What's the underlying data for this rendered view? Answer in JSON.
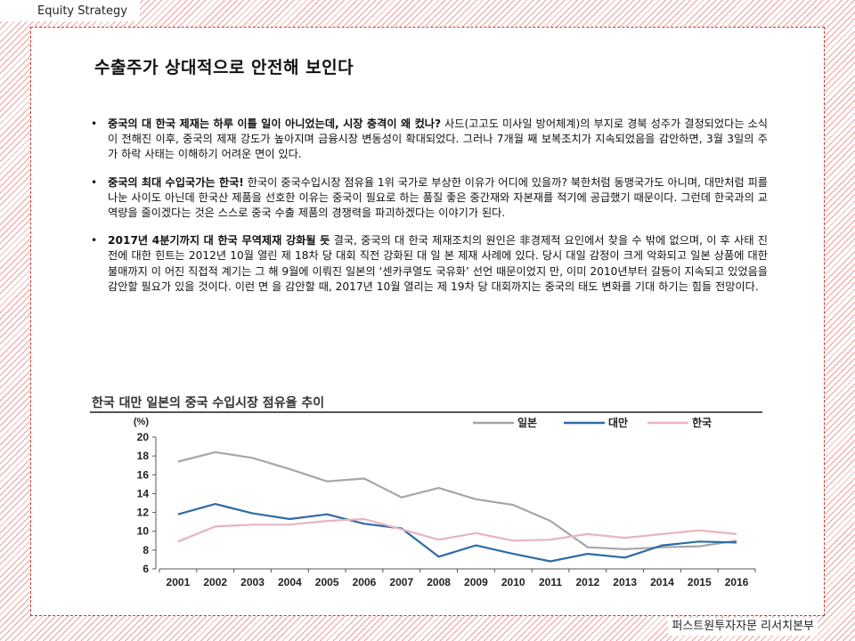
{
  "header": {
    "section": "Equity Strategy"
  },
  "page": {
    "title": "수출주가 상대적으로 안전해 보인다"
  },
  "bullets": [
    {
      "lead": "중국의 대 한국 제재는 하루 이틀 일이 아니었는데, 시장 충격이 왜 컸나?",
      "body": " 사드(고고도 미사일 방어체계)의 부지로 경북 성주가 결정되었다는 소식이 전해진 이후, 중국의 제재 강도가 높아지며 금융시장 변동성이 확대되었다. 그러나 7개월 째 보복조치가 지속되었음을 감안하면, 3월 3일의 주가 하락 사태는 이해하기 어려운 면이 있다."
    },
    {
      "lead": "중국의 최대 수입국가는 한국!",
      "body": " 한국이 중국수입시장 점유율 1위 국가로 부상한 이유가 어디에 있을까? 북한처럼 동맹국가도 아니며, 대만처럼 피를 나눈 사이도 아닌데 한국산 제품을 선호한 이유는 중국이 필요로 하는 품질 좋은 중간재와 자본재를 적기에 공급했기 때문이다. 그런데 한국과의 교역량을 줄이겠다는 것은 스스로 중국 수출 제품의 경쟁력을 파괴하겠다는 이야기가 된다."
    },
    {
      "lead": "2017년 4분기까지 대 한국 무역제재 강화될 듯",
      "body": " 결국, 중국의 대 한국 제재조치의 원인은 非경제적 요인에서 찾을 수 밖에 없으며, 이 후 사태 진전에 대한 힌트는 2012년 10월 열린 제 18차 당 대회 직전 강화된 대 일 본 제재 사례에 있다. 당시 대일 감정이 크게 악화되고 일본 상품에 대한 불매까지 이 어진 직접적 계기는 그 해 9월에 이뤄진 일본의 ‘센카쿠열도 국유화’ 선언 때문이었지 만, 이미 2010년부터 갈등이 지속되고 있었음을 감안할 필요가 있을 것이다. 이런 면 을 감안할 때, 2017년 10월 열리는 제 19차 당 대회까지는 중국의 태도 변화를 기대 하기는 힘들 전망이다."
    }
  ],
  "footer": {
    "source": "퍼스트원투자자문 리서치본부"
  },
  "chart_data": {
    "type": "line",
    "title": "한국 대만 일본의 중국 수입시장 점유율 추이",
    "unit_label": "(%)",
    "x": [
      "2001",
      "2002",
      "2003",
      "2004",
      "2005",
      "2006",
      "2007",
      "2008",
      "2009",
      "2010",
      "2011",
      "2012",
      "2013",
      "2014",
      "2015",
      "2016"
    ],
    "ylim": [
      6,
      20
    ],
    "yticks": [
      6,
      8,
      10,
      12,
      14,
      16,
      18,
      20
    ],
    "grid": false,
    "legend_position": "top-right",
    "series": [
      {
        "name": "일본",
        "color": "#a6a6a6",
        "values": [
          17.4,
          18.4,
          17.8,
          16.6,
          15.3,
          15.6,
          13.6,
          14.6,
          13.4,
          12.8,
          11.1,
          8.3,
          8.1,
          8.3,
          8.4,
          9.0
        ]
      },
      {
        "name": "대만",
        "color": "#2e6ba4",
        "values": [
          11.8,
          12.9,
          11.9,
          11.3,
          11.8,
          10.8,
          10.3,
          7.3,
          8.5,
          7.6,
          6.8,
          7.6,
          7.2,
          8.5,
          8.9,
          8.8
        ]
      },
      {
        "name": "한국",
        "color": "#e8b4c0",
        "values": [
          8.9,
          10.5,
          10.7,
          10.7,
          11.1,
          11.3,
          10.2,
          9.1,
          9.8,
          9.0,
          9.1,
          9.7,
          9.3,
          9.7,
          10.1,
          9.7
        ]
      }
    ]
  }
}
